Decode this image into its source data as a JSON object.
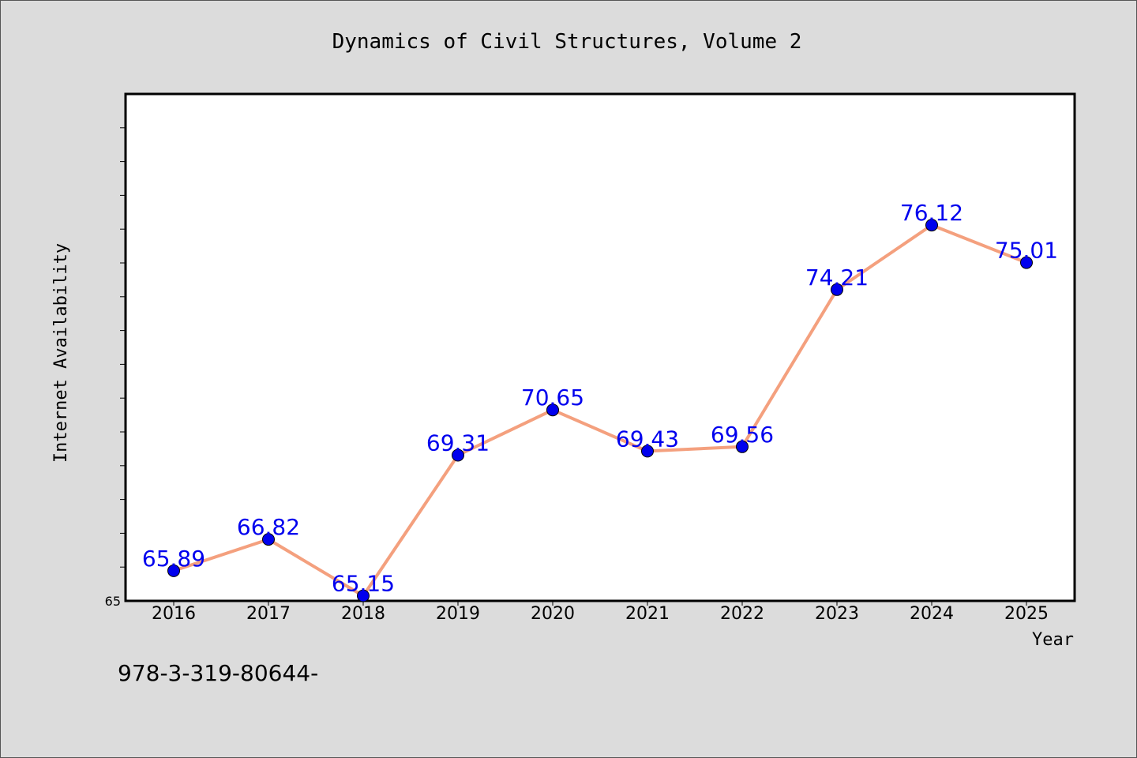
{
  "chart_data": {
    "type": "line",
    "title": "Dynamics of Civil Structures, Volume 2",
    "xlabel": "Year",
    "ylabel": "Internet Availability",
    "categories": [
      "2016",
      "2017",
      "2018",
      "2019",
      "2020",
      "2021",
      "2022",
      "2023",
      "2024",
      "2025"
    ],
    "series": [
      {
        "values": [
          65.89,
          66.82,
          65.15,
          69.31,
          70.65,
          69.43,
          69.56,
          74.21,
          76.12,
          75.01
        ],
        "data_labels": [
          "65.89",
          "66.82",
          "65.15",
          "69.31",
          "70.65",
          "69.43",
          "69.56",
          "74.21",
          "76.12",
          "75.01"
        ],
        "line_color": "#f4a07e",
        "marker_color": "#0000ee"
      }
    ],
    "ylim": [
      65,
      80
    ],
    "y_minor_tick_step": 1,
    "y_tick_labels": [
      {
        "value": 65,
        "label": "65"
      }
    ],
    "grid": false,
    "legend": "none",
    "data_label_color": "#0000ee",
    "plot_background": "#ffffff",
    "figure_background": "#dcdcdc"
  },
  "footer_text": "978-3-319-80644-"
}
